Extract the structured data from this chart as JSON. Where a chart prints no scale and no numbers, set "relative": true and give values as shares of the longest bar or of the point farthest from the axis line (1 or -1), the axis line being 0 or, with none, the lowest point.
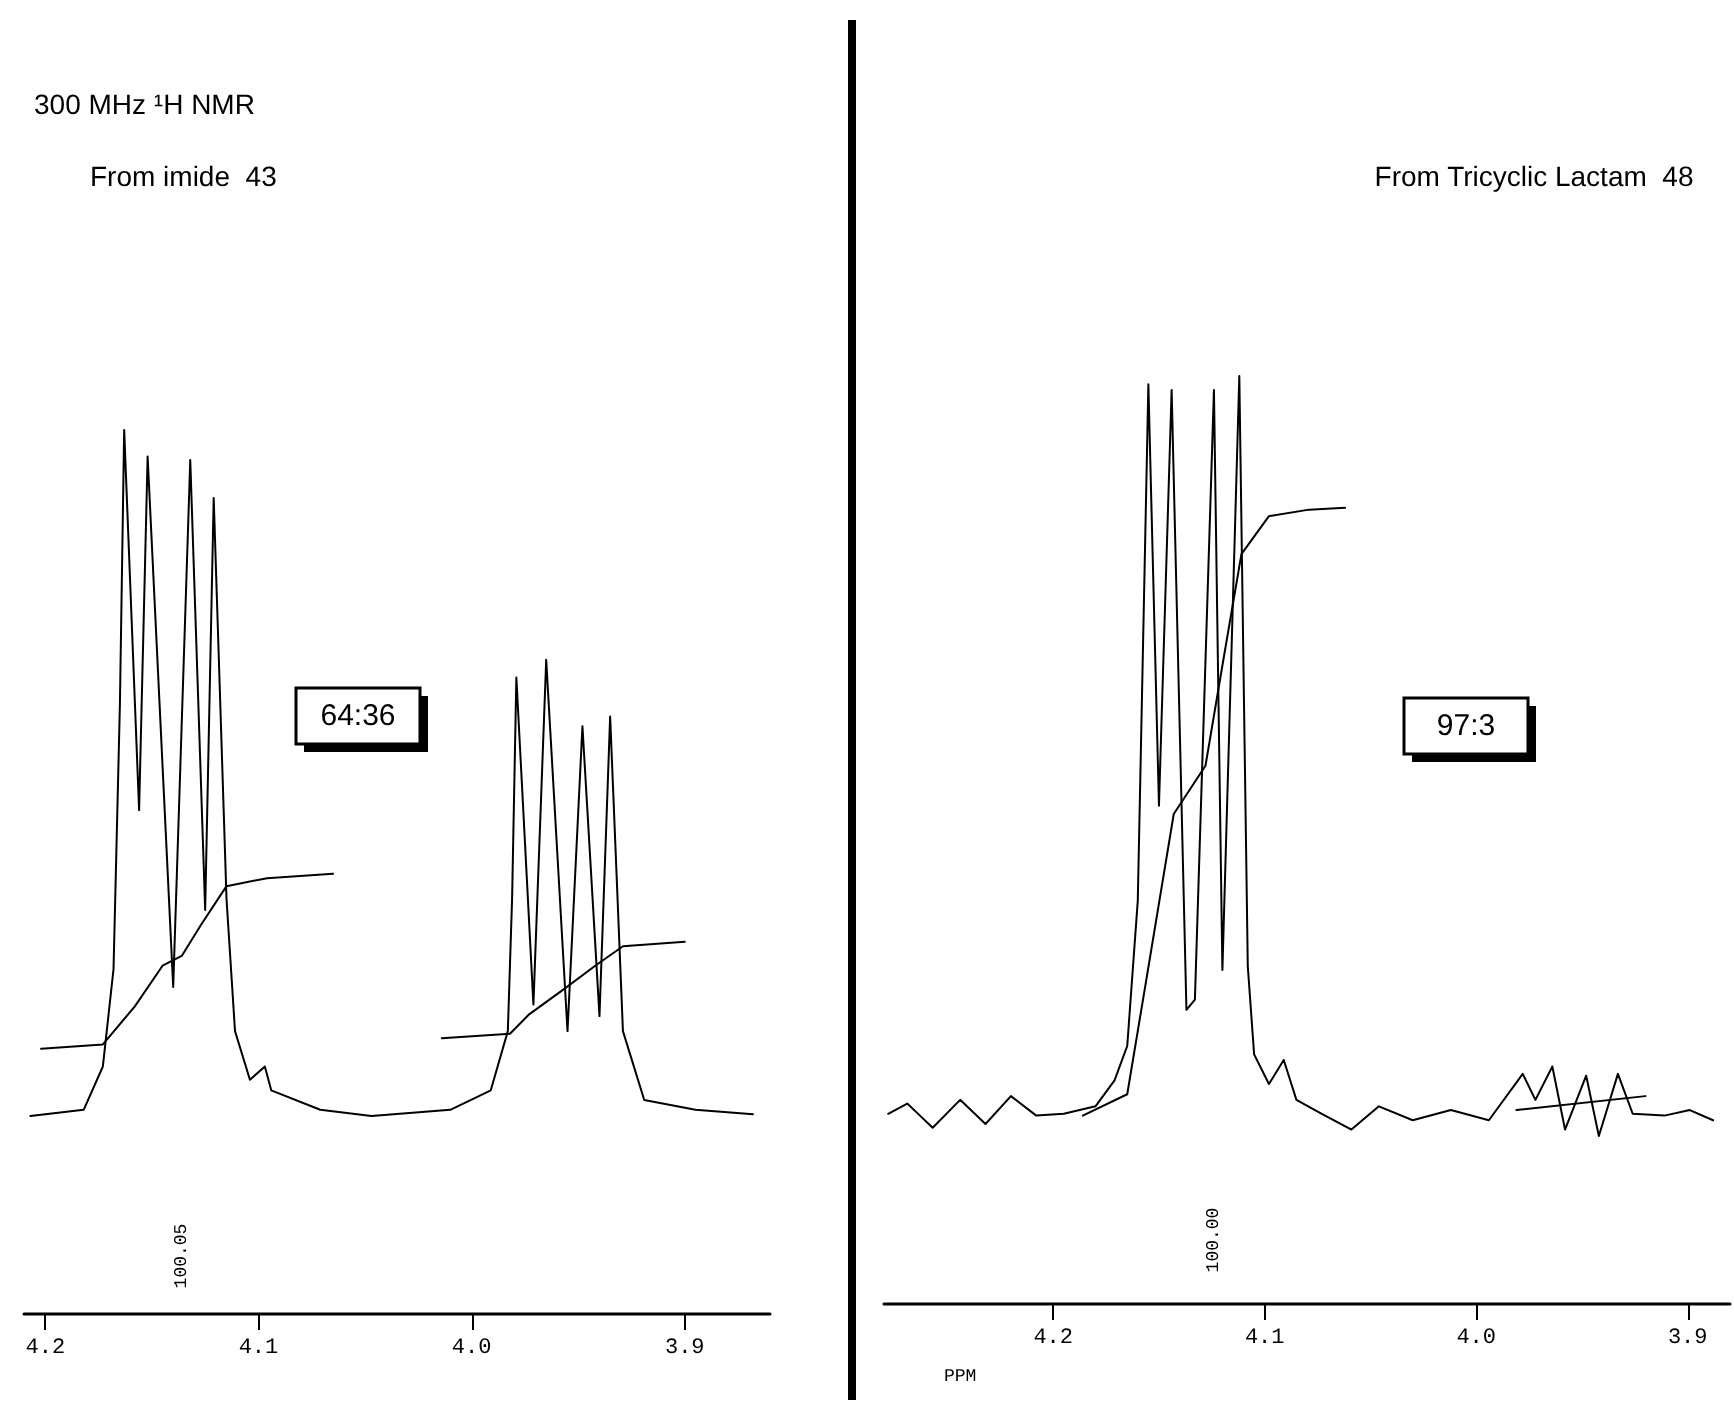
{
  "chart_data": [
    {
      "type": "line",
      "title": "300 MHz ¹H NMR",
      "subtitle": "From imide  43",
      "relative": true,
      "grid": false,
      "marker": "none",
      "line_style": "solid",
      "xlim": [
        4.21,
        3.86
      ],
      "xticks": [
        4.2,
        4.1,
        {
          "value": 4,
          "label": "4.0"
        },
        3.9
      ],
      "annotations": [
        "64:36",
        "100.05"
      ],
      "series": [
        {
          "color": "#000000",
          "x": [
            4.207,
            4.182,
            4.173,
            4.168,
            4.165,
            4.163,
            4.156,
            4.152,
            4.14,
            4.132,
            4.125,
            4.121,
            4.115,
            4.111,
            4.104,
            4.097,
            4.094,
            4.071,
            4.047,
            4.01,
            3.991,
            3.983,
            3.981,
            3.979,
            3.971,
            3.965,
            3.955,
            3.948,
            3.94,
            3.935,
            3.929,
            3.919,
            3.895,
            3.868
          ],
          "values": [
            0.224,
            0.231,
            0.28,
            0.39,
            0.69,
            1.0,
            0.57,
            0.97,
            0.37,
            0.966,
            0.457,
            0.923,
            0.47,
            0.32,
            0.265,
            0.28,
            0.253,
            0.231,
            0.224,
            0.231,
            0.253,
            0.32,
            0.47,
            0.72,
            0.35,
            0.74,
            0.32,
            0.665,
            0.337,
            0.676,
            0.32,
            0.242,
            0.231,
            0.226
          ]
        },
        {
          "color": "#000000",
          "x": [
            4.202,
            4.173,
            4.158,
            4.145,
            4.136,
            4.127,
            4.115,
            4.096,
            4.065
          ],
          "values": [
            0.3,
            0.305,
            0.348,
            0.394,
            0.405,
            0.44,
            0.484,
            0.493,
            0.498
          ]
        },
        {
          "color": "#000000",
          "x": [
            4.014,
            3.982,
            3.973,
            3.957,
            3.942,
            3.929,
            3.9
          ],
          "values": [
            0.312,
            0.317,
            0.339,
            0.367,
            0.394,
            0.416,
            0.421
          ]
        }
      ]
    },
    {
      "type": "line",
      "subtitle": "From Tricyclic Lactam  48",
      "xlabel": "PPM",
      "relative": true,
      "grid": false,
      "marker": "none",
      "line_style": "solid",
      "xlim": [
        4.28,
        3.88
      ],
      "xticks": [
        4.2,
        4.1,
        {
          "value": 4,
          "label": "4.0"
        },
        3.9
      ],
      "annotations": [
        "97:3",
        "100.00"
      ],
      "series": [
        {
          "color": "#000000",
          "x": [
            4.278,
            4.269,
            4.263,
            4.257,
            4.244,
            4.232,
            4.22,
            4.208,
            4.195,
            4.18,
            4.171,
            4.165,
            4.16,
            4.155,
            4.15,
            4.144,
            4.137,
            4.133,
            4.124,
            4.12,
            4.112,
            4.108,
            4.105,
            4.098,
            4.091,
            4.085,
            4.073,
            4.059,
            4.046,
            4.03,
            4.012,
            3.994,
            3.978,
            3.972,
            3.964,
            3.958,
            3.948,
            3.942,
            3.933,
            3.926,
            3.911,
            3.899,
            3.888
          ],
          "values": [
            0.205,
            0.216,
            0.203,
            0.19,
            0.22,
            0.194,
            0.224,
            0.203,
            0.205,
            0.213,
            0.241,
            0.278,
            0.435,
            0.991,
            0.537,
            0.985,
            0.317,
            0.328,
            0.985,
            0.36,
            1.0,
            0.364,
            0.269,
            0.237,
            0.263,
            0.22,
            0.205,
            0.188,
            0.213,
            0.198,
            0.209,
            0.198,
            0.248,
            0.22,
            0.256,
            0.188,
            0.246,
            0.181,
            0.248,
            0.205,
            0.203,
            0.209,
            0.198
          ]
        },
        {
          "color": "#000000",
          "x": [
            4.186,
            4.165,
            4.156,
            4.143,
            4.128,
            4.12,
            4.111,
            4.098,
            4.079,
            4.062
          ],
          "values": [
            0.203,
            0.226,
            0.349,
            0.528,
            0.58,
            0.688,
            0.808,
            0.849,
            0.856,
            0.858
          ]
        },
        {
          "color": "#000000",
          "x": [
            3.981,
            3.92
          ],
          "values": [
            0.209,
            0.224
          ]
        }
      ]
    }
  ]
}
